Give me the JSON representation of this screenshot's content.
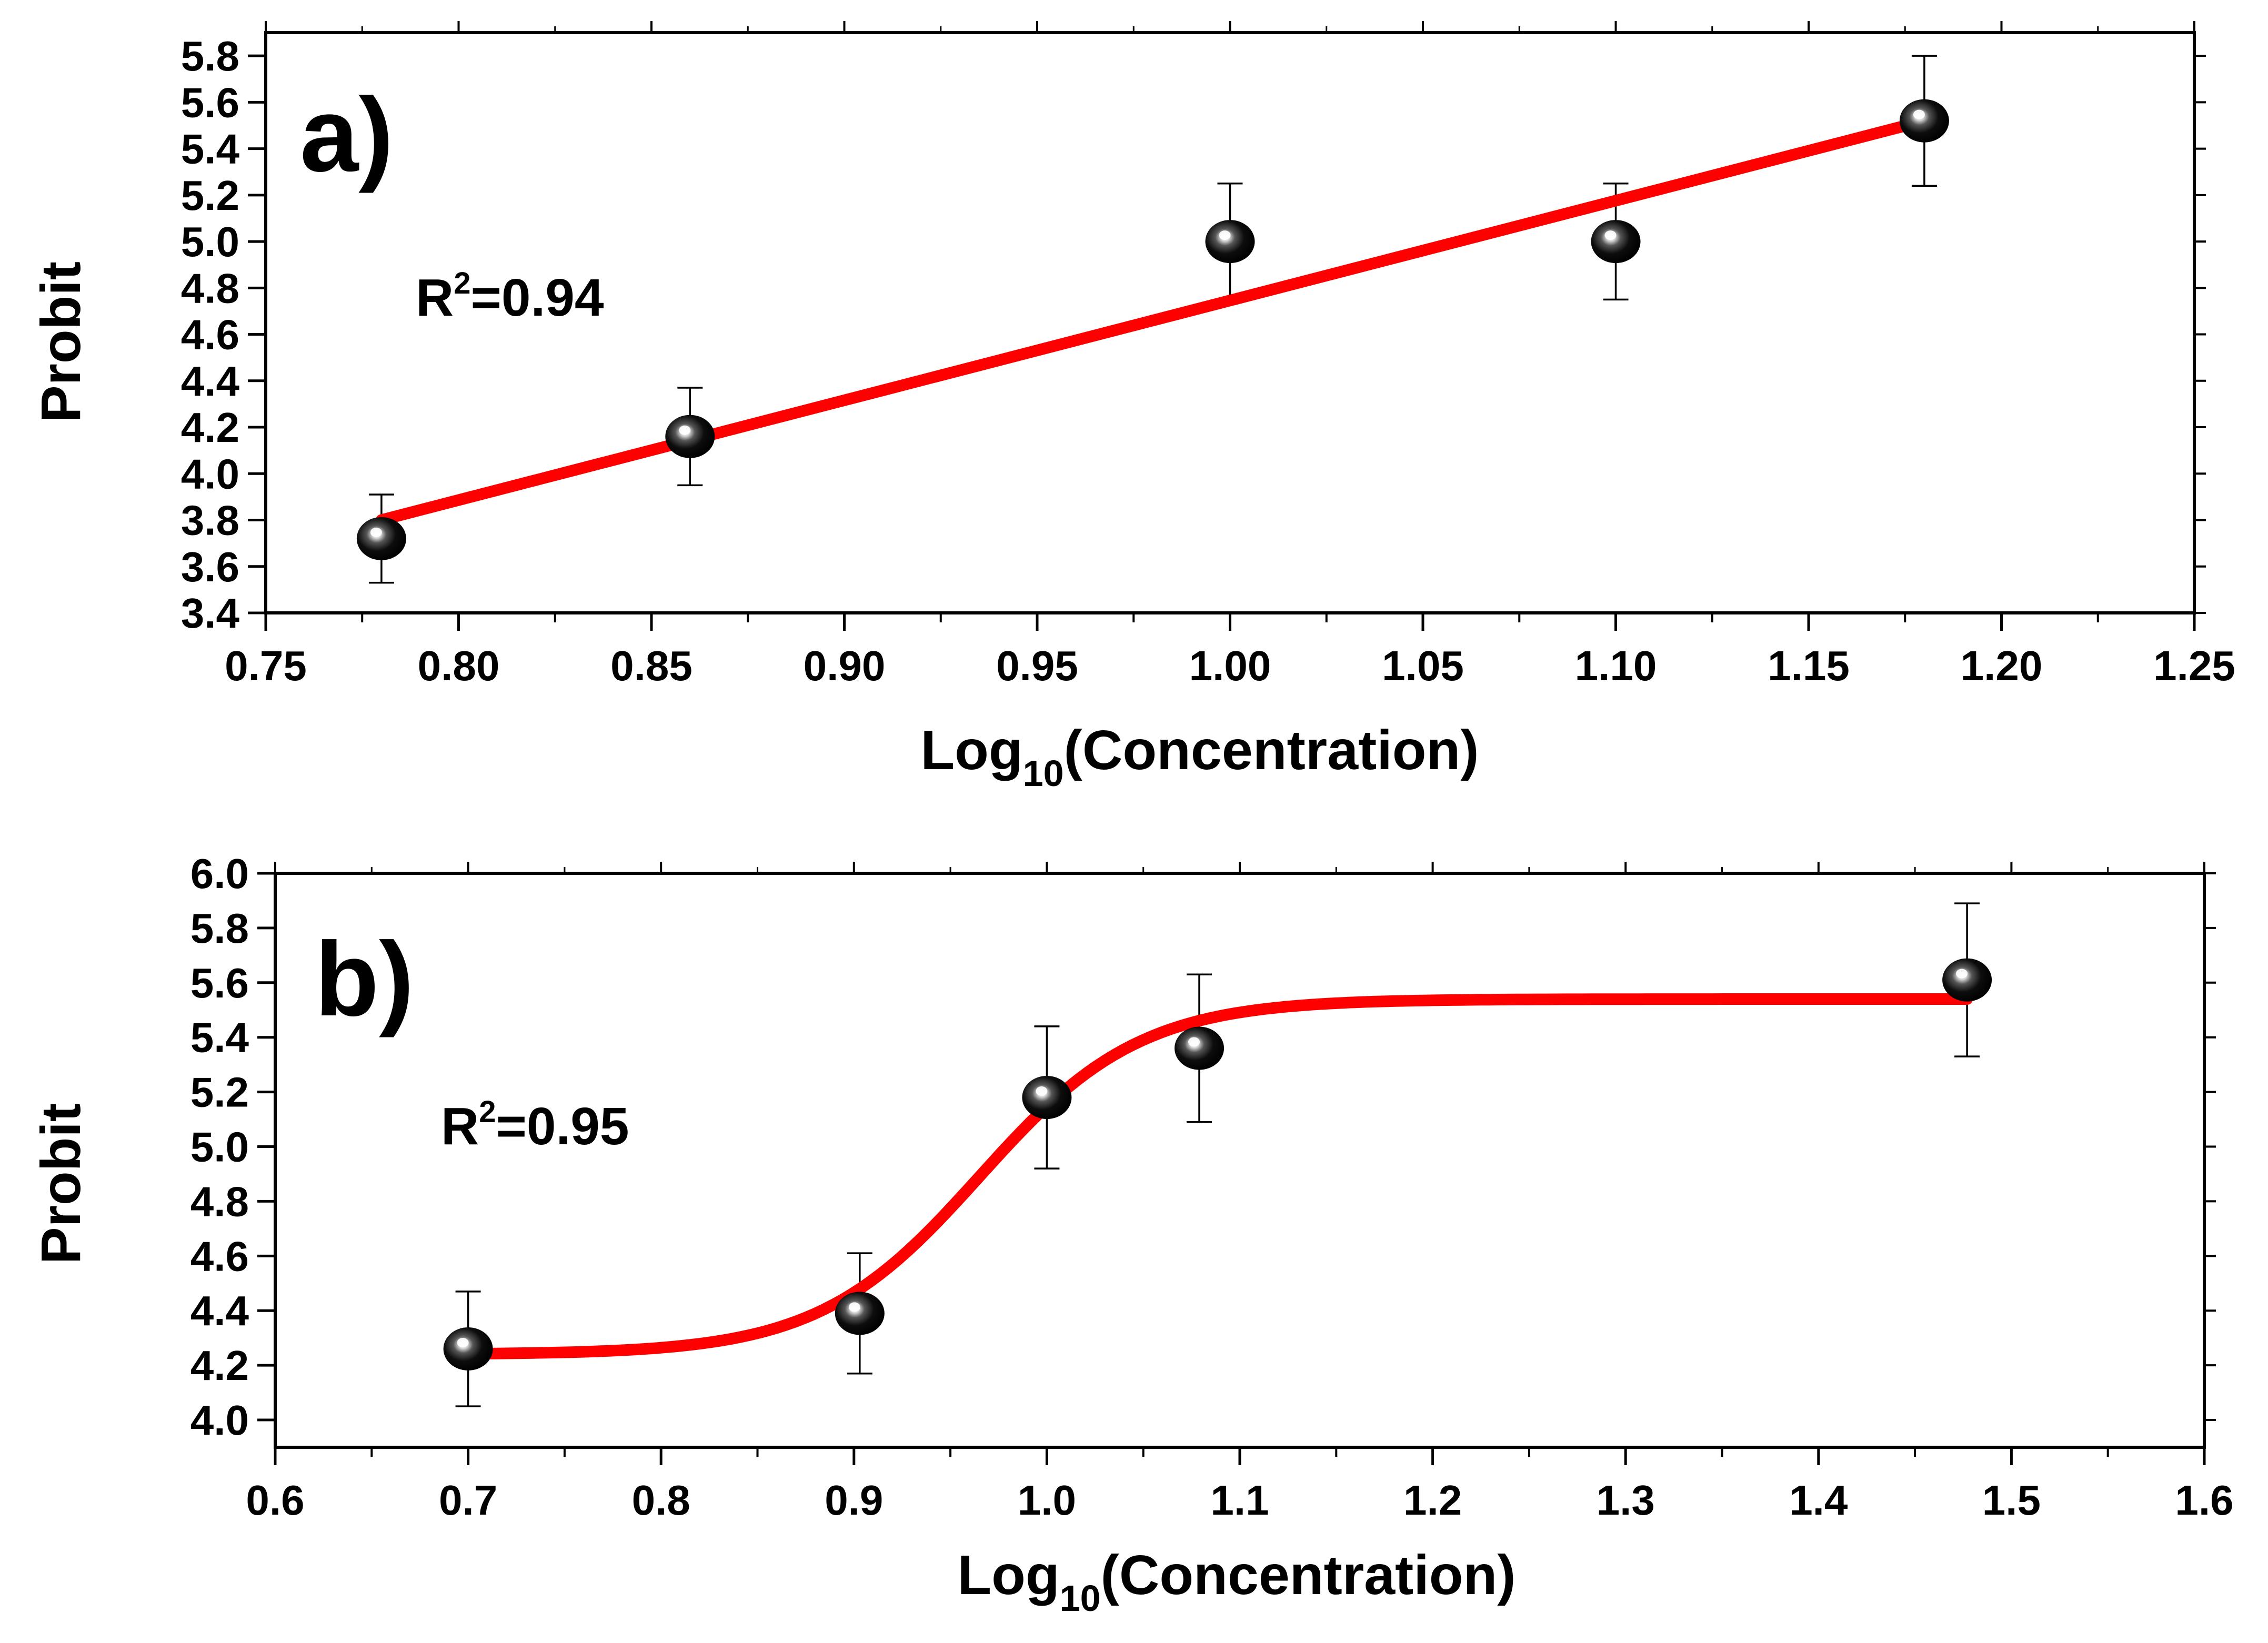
{
  "chart_data": [
    {
      "panel": "a)",
      "type": "scatter",
      "fit": "linear",
      "annotation": {
        "r_label": "R",
        "r_exp": "2",
        "r_value": "=0.94"
      },
      "xlabel": {
        "main": "Log",
        "sub": "10",
        "rest": "(Concentration)"
      },
      "ylabel": "Probit",
      "xlim": [
        0.75,
        1.25
      ],
      "ylim": [
        3.4,
        5.9
      ],
      "xticks": [
        0.75,
        0.8,
        0.85,
        0.9,
        0.95,
        1.0,
        1.05,
        1.1,
        1.15,
        1.2,
        1.25
      ],
      "xtick_labels": [
        "0.75",
        "0.80",
        "0.85",
        "0.90",
        "0.95",
        "1.00",
        "1.05",
        "1.10",
        "1.15",
        "1.20",
        "1.25"
      ],
      "yticks": [
        3.4,
        3.6,
        3.8,
        4.0,
        4.2,
        4.4,
        4.6,
        4.8,
        5.0,
        5.2,
        5.4,
        5.6,
        5.8
      ],
      "ytick_labels": [
        "3.4",
        "3.6",
        "3.8",
        "4.0",
        "4.2",
        "4.4",
        "4.6",
        "4.8",
        "5.0",
        "5.2",
        "5.4",
        "5.6",
        "5.8"
      ],
      "points": [
        {
          "x": 0.78,
          "y": 3.72,
          "err": 0.19
        },
        {
          "x": 0.86,
          "y": 4.16,
          "err": 0.21
        },
        {
          "x": 1.0,
          "y": 5.0,
          "err": 0.25
        },
        {
          "x": 1.1,
          "y": 5.0,
          "err": 0.25
        },
        {
          "x": 1.18,
          "y": 5.52,
          "err": 0.28
        }
      ],
      "fit_line": {
        "x": [
          0.78,
          1.18
        ],
        "y": [
          3.8,
          5.52
        ]
      },
      "colors": {
        "fit": "#ff0000",
        "marker": "#111111"
      }
    },
    {
      "panel": "b)",
      "type": "scatter",
      "fit": "sigmoid",
      "annotation": {
        "r_label": "R",
        "r_exp": "2",
        "r_value": "=0.95"
      },
      "xlabel": {
        "main": "Log",
        "sub": "10",
        "rest": "(Concentration)"
      },
      "ylabel": "Probit",
      "xlim": [
        0.6,
        1.6
      ],
      "ylim": [
        3.9,
        6.0
      ],
      "xticks": [
        0.6,
        0.7,
        0.8,
        0.9,
        1.0,
        1.1,
        1.2,
        1.3,
        1.4,
        1.5,
        1.6
      ],
      "xtick_labels": [
        "0.6",
        "0.7",
        "0.8",
        "0.9",
        "1.0",
        "1.1",
        "1.2",
        "1.3",
        "1.4",
        "1.5",
        "1.6"
      ],
      "yticks": [
        4.0,
        4.2,
        4.4,
        4.6,
        4.8,
        5.0,
        5.2,
        5.4,
        5.6,
        5.8,
        6.0
      ],
      "ytick_labels": [
        "4.0",
        "4.2",
        "4.4",
        "4.6",
        "4.8",
        "5.0",
        "5.2",
        "5.4",
        "5.6",
        "5.8",
        "6.0"
      ],
      "points": [
        {
          "x": 0.7,
          "y": 4.26,
          "err": 0.21
        },
        {
          "x": 0.903,
          "y": 4.39,
          "err": 0.22
        },
        {
          "x": 1.0,
          "y": 5.18,
          "err": 0.26
        },
        {
          "x": 1.079,
          "y": 5.36,
          "err": 0.27
        },
        {
          "x": 1.477,
          "y": 5.61,
          "err": 0.28
        }
      ],
      "fit_curve": {
        "x_start": 0.7,
        "x_end": 1.477,
        "bottom": 4.24,
        "top": 5.54,
        "x0": 0.965,
        "k": 24
      },
      "colors": {
        "fit": "#ff0000",
        "marker": "#111111"
      }
    }
  ]
}
